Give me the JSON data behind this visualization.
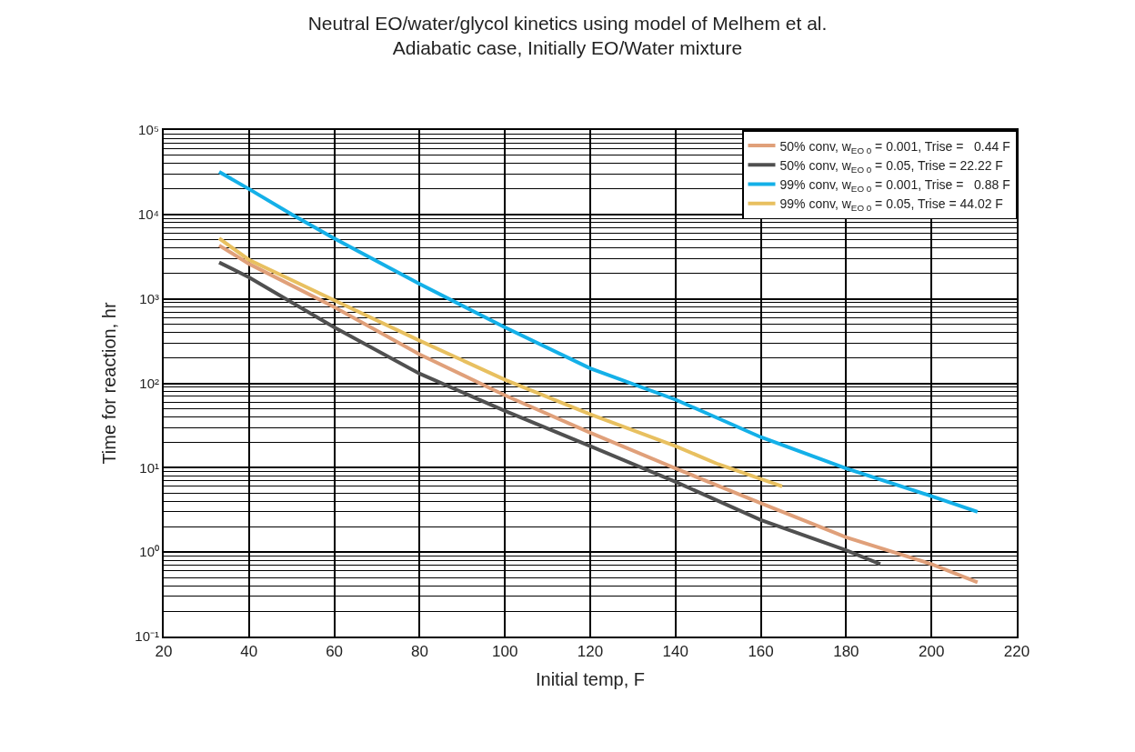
{
  "chart_data": {
    "type": "line",
    "title": "Neutral EO/water/glycol kinetics using model of Melhem et al.",
    "subtitle": "Adiabatic case, Initially EO/Water mixture",
    "xlabel": "Initial temp, F",
    "ylabel": "Time for reaction, hr",
    "log": "y",
    "grid": true,
    "legend": "top right",
    "marker": "none",
    "line_style": "solid",
    "xlim": [
      20,
      220
    ],
    "xticks": [
      20,
      40,
      60,
      80,
      100,
      120,
      140,
      160,
      180,
      200,
      220
    ],
    "ylim": [
      0.1,
      100000
    ],
    "yticks": [
      {
        "value": 0.1,
        "label": "10⁻¹"
      },
      {
        "value": 1,
        "label": "10⁰"
      },
      {
        "value": 10,
        "label": "10¹"
      },
      {
        "value": 100,
        "label": "10²"
      },
      {
        "value": 1000,
        "label": "10³"
      },
      {
        "value": 10000,
        "label": "10⁴"
      },
      {
        "value": 100000,
        "label": "10⁵"
      }
    ],
    "series": [
      {
        "name": "50% conv, w$_{EO 0}$ = 0.001, Trise =   0.44 F",
        "color": "#e0a07a",
        "x": [
          33,
          40,
          60,
          80,
          100,
          120,
          140,
          160,
          180,
          200,
          210.8
        ],
        "values": [
          4300,
          2600,
          800,
          220,
          72,
          26,
          9.8,
          3.8,
          1.5,
          0.72,
          0.44
        ]
      },
      {
        "name": "50% conv, w$_{EO 0}$ = 0.05, Trise = 22.22 F",
        "color": "#505050",
        "x": [
          33,
          40,
          60,
          80,
          100,
          120,
          140,
          160,
          180,
          188
        ],
        "values": [
          2700,
          1800,
          460,
          130,
          47,
          18,
          6.8,
          2.4,
          1.05,
          0.72
        ]
      },
      {
        "name": "99% conv, w$_{EO 0}$ = 0.001, Trise =   0.88 F",
        "color": "#14b0e8",
        "x": [
          33,
          40,
          50,
          60,
          80,
          100,
          120,
          140,
          160,
          180,
          200,
          210.8
        ],
        "values": [
          32000,
          20000,
          10000,
          5200,
          1500,
          460,
          150,
          64,
          23,
          9.8,
          4.6,
          3.0
        ]
      },
      {
        "name": "99% conv, w$_{EO 0}$ = 0.05, Trise = 44.02 F",
        "color": "#e8c060",
        "x": [
          33,
          40,
          60,
          80,
          100,
          120,
          140,
          150,
          165
        ],
        "values": [
          5200,
          2900,
          960,
          320,
          110,
          43,
          18,
          11,
          6
        ]
      }
    ]
  }
}
